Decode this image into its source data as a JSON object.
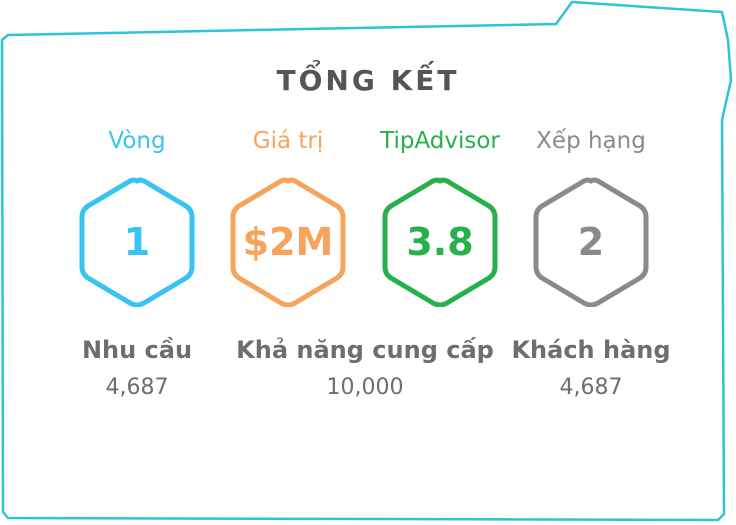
{
  "title": "TỔNG KẾT",
  "colors": {
    "frame": "#2ec4d6",
    "blue": "#38c3f3",
    "orange": "#f7a35c",
    "green": "#27b04b",
    "gray": "#8a8a8a",
    "text_gray": "#6e6e6e"
  },
  "stats": [
    {
      "label": "Vòng",
      "value": "1",
      "color": "#38c3f3"
    },
    {
      "label": "Giá trị",
      "value": "$2M",
      "color": "#f7a35c"
    },
    {
      "label": "TipAdvisor",
      "value": "3.8",
      "color": "#27b04b"
    },
    {
      "label": "Xếp hạng",
      "value": "2",
      "color": "#8a8a8a"
    }
  ],
  "groups": [
    {
      "label": "Nhu cầu",
      "value": "4,687"
    },
    {
      "label": "Khả năng cung cấp",
      "value": "10,000"
    },
    {
      "label": "Khách hàng",
      "value": "4,687"
    }
  ]
}
